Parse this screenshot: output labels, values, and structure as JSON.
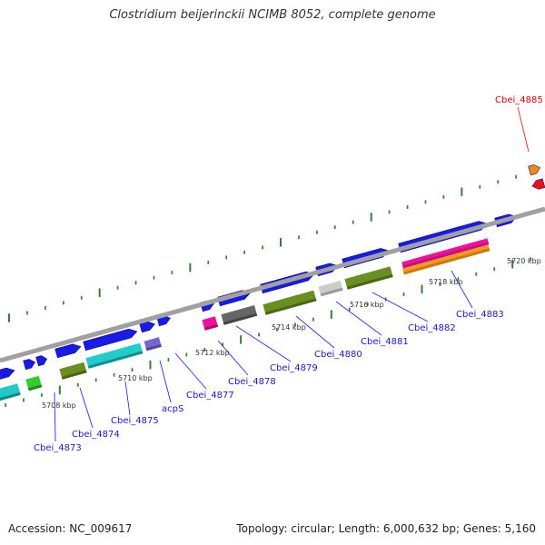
{
  "title": "Clostridium beijerinckii NCIMB 8052, complete genome",
  "accession_label": "Accession: NC_009617",
  "summary_label": "Topology: circular; Length: 6,000,632 bp; Genes: 5,160",
  "colors": {
    "backbone": "#a0a0a0",
    "tick_major": "#3a7a3a",
    "tick_minor": "#2e8b2e",
    "gene_blue": "#1a1ae6",
    "label_blue": "#1a1acc",
    "label_red": "#dd0000",
    "leader_blue": "#2a2aee",
    "leader_red": "#ee2222"
  },
  "scale_labels": [
    "5708 kbp",
    "5710 kbp",
    "5712 kbp",
    "5714 kbp",
    "5716 kbp",
    "5718 kbp",
    "5720 kbp"
  ],
  "gene_labels": [
    {
      "text": "Cbei_4873",
      "color": "blue"
    },
    {
      "text": "Cbei_4874",
      "color": "blue"
    },
    {
      "text": "Cbei_4875",
      "color": "blue"
    },
    {
      "text": "acpS",
      "color": "blue"
    },
    {
      "text": "Cbei_4877",
      "color": "blue"
    },
    {
      "text": "Cbei_4878",
      "color": "blue"
    },
    {
      "text": "Cbei_4879",
      "color": "blue"
    },
    {
      "text": "Cbei_4880",
      "color": "blue"
    },
    {
      "text": "Cbei_4881",
      "color": "blue"
    },
    {
      "text": "Cbei_4882",
      "color": "blue"
    },
    {
      "text": "Cbei_4883",
      "color": "blue"
    },
    {
      "text": "Cbei_4885",
      "color": "red"
    }
  ]
}
